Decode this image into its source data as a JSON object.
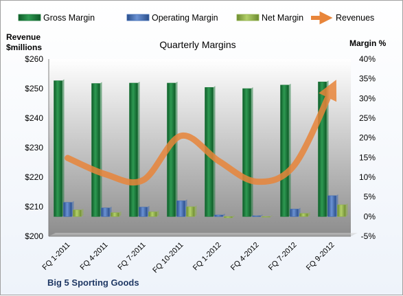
{
  "chart_data": {
    "type": "bar",
    "title": "Quarterly Margins",
    "company": "Big 5 Sporting Goods",
    "left_axis": {
      "label_line1": "Revenue",
      "label_line2": "$millions",
      "min": 200,
      "max": 260,
      "step": 10,
      "tick_labels": [
        "$200",
        "$210",
        "$220",
        "$230",
        "$240",
        "$250",
        "$260"
      ]
    },
    "right_axis": {
      "label": "Margin %",
      "min": -5,
      "max": 40,
      "step": 5,
      "tick_labels": [
        "-5%",
        "0%",
        "5%",
        "10%",
        "15%",
        "20%",
        "25%",
        "30%",
        "35%",
        "40%"
      ]
    },
    "categories": [
      "FQ 1-2011",
      "FQ 4-2011",
      "FQ 7-2011",
      "FQ 10-2011",
      "FQ 1-2012",
      "FQ 4-2012",
      "FQ 7-2012",
      "FQ 9-2012"
    ],
    "series": [
      {
        "name": "Gross Margin",
        "type": "bar",
        "axis": "right",
        "color": "#1f7a3c",
        "values": [
          34.5,
          33.8,
          33.9,
          33.9,
          32.8,
          32.5,
          33.4,
          34.2
        ]
      },
      {
        "name": "Operating Margin",
        "type": "bar",
        "axis": "right",
        "color": "#3f6cb5",
        "values": [
          3.6,
          2.2,
          2.4,
          4.0,
          0.4,
          0.2,
          1.9,
          5.3
        ]
      },
      {
        "name": "Net Margin",
        "type": "bar",
        "axis": "right",
        "color": "#8fb14a",
        "values": [
          1.7,
          1.0,
          1.2,
          2.5,
          -0.3,
          -0.1,
          0.8,
          3.0
        ]
      },
      {
        "name": "Revenues",
        "type": "line",
        "axis": "left",
        "color": "#e8853a",
        "values": [
          226.5,
          221.0,
          219.0,
          234.0,
          225.5,
          218.5,
          224.0,
          250.0
        ]
      }
    ],
    "legend_position": "top",
    "grid": false
  }
}
